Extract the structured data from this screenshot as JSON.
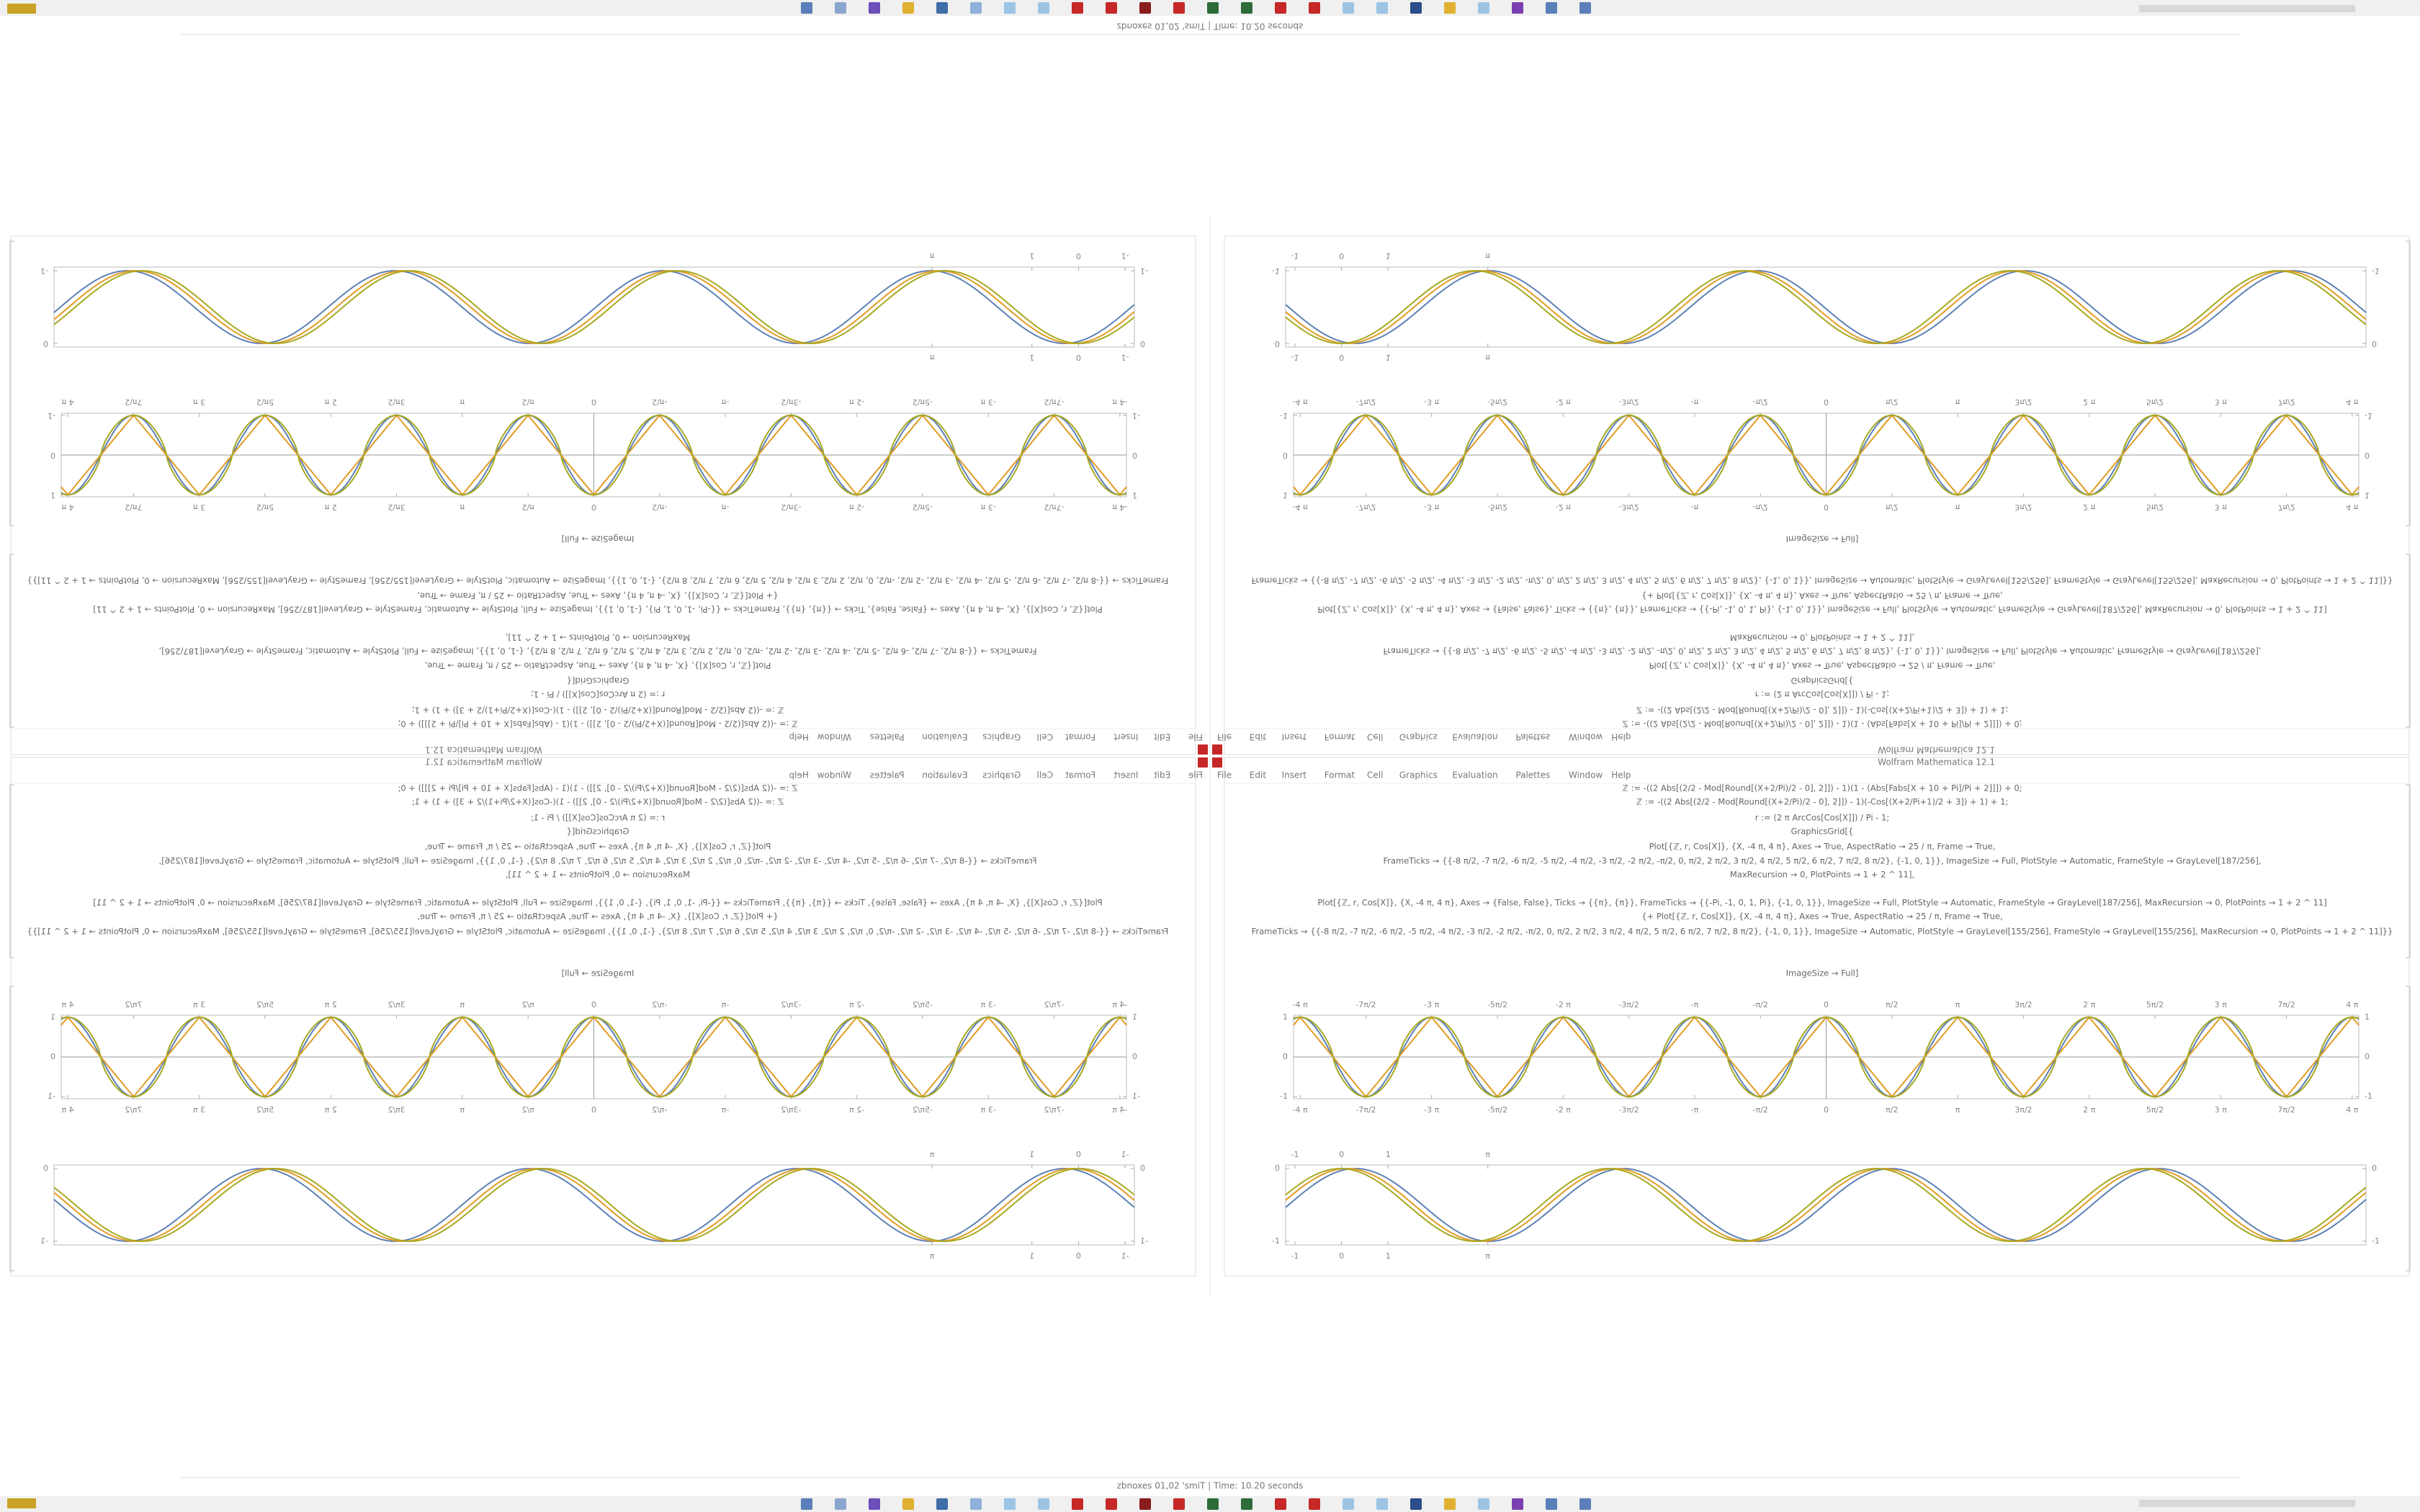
{
  "window": {
    "title": "Wolfram Mathematica 12.1",
    "menu": [
      "File",
      "Edit",
      "Insert",
      "Format",
      "Cell",
      "Graphics",
      "Evaluation",
      "Palettes",
      "Window",
      "Help"
    ],
    "status": "zbnoxes 01,02 'smiT | Time: 10.20 seconds"
  },
  "code": [
    "ℤ := -((2 Abs[(2/2 - Mod[Round[(X+2/Pi)/2 - 0], 2]]) - 1)(1 - (Abs[Fabs[X + 10 + Pi]/Pi + 2]]]) + 0;",
    "ℤ := -((2 Abs[(2/2 - Mod[Round[(X+2/Pi)/2 - 0], 2]]) - 1)(-Cos[(X+2/Pi+1)/2 + 3]) + 1) + 1;",
    "r := (2 π ArcCos[Cos[X]]) / Pi - 1;",
    "GraphicsGrid[{",
    "Plot[{ℤ, r, Cos[X]}, {X, -4 π, 4 π}, Axes → True, AspectRatio → 25 / π, Frame → True,",
    "FrameTicks → {{-8 π/2, -7 π/2, -6 π/2, -5 π/2, -4 π/2, -3 π/2, -2 π/2, -π/2, 0, π/2, 2 π/2, 3 π/2, 4 π/2, 5 π/2, 6 π/2, 7 π/2, 8 π/2}, {-1, 0, 1}}, ImageSize → Full, PlotStyle → Automatic, FrameStyle → GrayLevel[187/256],",
    "MaxRecursion → 0, PlotPoints → 1 + 2 ^ 11],",
    "Plot[{ℤ, r, Cos[X]}, {X, -4 π, 4 π}, Axes → {False, False}, Ticks → {{π}, {π}}, FrameTicks → {{-Pi, -1, 0, 1, Pi}, {-1, 0, 1}}, ImageSize → Full, PlotStyle → Automatic, FrameStyle → GrayLevel[187/256], MaxRecursion → 0, PlotPoints → 1 + 2 ^ 11]",
    "{+ Plot[{ℤ, r, Cos[X]}, {X, -4 π, 4 π}, Axes → True, AspectRatio → 25 / π, Frame → True,",
    "FrameTicks → {{-8 π/2, -7 π/2, -6 π/2, -5 π/2, -4 π/2, -3 π/2, -2 π/2, -π/2, 0, π/2, 2 π/2, 3 π/2, 4 π/2, 5 π/2, 6 π/2, 7 π/2, 8 π/2}, {-1, 0, 1}}, ImageSize → Automatic, PlotStyle → GrayLevel[155/256], FrameStyle → GrayLevel[155/256], MaxRecursion → 0, PlotPoints → 1 + 2 ^ 11]}}",
    "ImageSize → Full]"
  ],
  "plot1": {
    "colors": [
      "#5e81b5",
      "#e19c24",
      "#a8a820"
    ],
    "xlim": [
      -4.05,
      4.05
    ],
    "xticks": [
      {
        "value": -4,
        "label": "-4 π"
      },
      {
        "value": -3.5,
        "label": "-7π/2"
      },
      {
        "value": -3,
        "label": "-3 π"
      },
      {
        "value": -2.5,
        "label": "-5π/2"
      },
      {
        "value": -2,
        "label": "-2 π"
      },
      {
        "value": -1.5,
        "label": "-3π/2"
      },
      {
        "value": -1,
        "label": "-π"
      },
      {
        "value": -0.5,
        "label": "-π/2"
      },
      0,
      {
        "value": 0.5,
        "label": "π/2"
      },
      {
        "value": 1,
        "label": "π"
      },
      {
        "value": 1.5,
        "label": "3π/2"
      },
      {
        "value": 2,
        "label": "2 π"
      },
      {
        "value": 2.5,
        "label": "5π/2"
      },
      {
        "value": 3,
        "label": "3 π"
      },
      {
        "value": 3.5,
        "label": "7π/2"
      },
      {
        "value": 4,
        "label": "4 π"
      }
    ],
    "ylim": [
      -1.05,
      1.05
    ],
    "yticks": [
      -1,
      0,
      1
    ]
  },
  "plot2": {
    "colors": [
      "#5e81b5",
      "#e19c24",
      "#a8a820"
    ],
    "xlim": [
      -1.2,
      22
    ],
    "xticks": [
      -1,
      0,
      1,
      {
        "value": 3.14159,
        "label": "π"
      }
    ],
    "ylim": [
      -1.05,
      0.05
    ],
    "yticks": [
      -1,
      0
    ]
  }
}
